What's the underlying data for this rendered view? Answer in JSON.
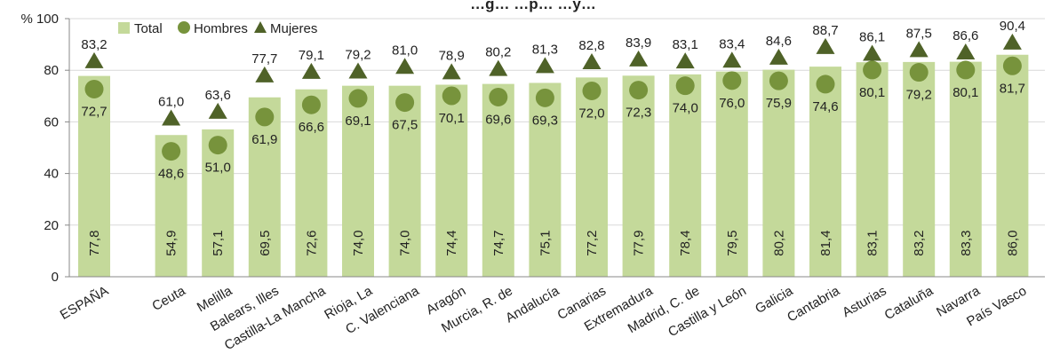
{
  "chart_data": {
    "type": "bar",
    "title": "…g…    …p…    …y…",
    "ylabel": "%",
    "ylim": [
      0,
      100
    ],
    "yticks": [
      0,
      20,
      40,
      60,
      80,
      100
    ],
    "y_top_tick_label": "% 100",
    "grid": true,
    "legend_position": "top-left",
    "decimal_separator": ",",
    "categories": [
      "ESPAÑA",
      "Ceuta",
      "Melilla",
      "Balears, Illes",
      "Castilla-La Mancha",
      "Rioja, La",
      "C. Valenciana",
      "Aragón",
      "Murcia, R. de",
      "Andalucía",
      "Canarias",
      "Extremadura",
      "Madrid, C. de",
      "Castilla y León",
      "Galicia",
      "Cantabria",
      "Asturias",
      "Cataluña",
      "Navarra",
      "País Vasco"
    ],
    "series": [
      {
        "name": "Total",
        "kind": "bar",
        "color": "#c4d99a",
        "values": [
          77.8,
          54.9,
          57.1,
          69.5,
          72.6,
          74.0,
          74.0,
          74.4,
          74.7,
          75.1,
          77.2,
          77.9,
          78.4,
          79.5,
          80.2,
          81.4,
          83.1,
          83.2,
          83.3,
          86.0
        ]
      },
      {
        "name": "Hombres",
        "kind": "circle",
        "color": "#77933c",
        "values": [
          72.7,
          48.6,
          51.0,
          61.9,
          66.6,
          69.1,
          67.5,
          70.1,
          69.6,
          69.3,
          72.0,
          72.3,
          74.0,
          76.0,
          75.9,
          74.6,
          80.1,
          79.2,
          80.1,
          81.7
        ]
      },
      {
        "name": "Mujeres",
        "kind": "triangle",
        "color": "#4f6228",
        "values": [
          83.2,
          61.0,
          63.6,
          77.7,
          79.1,
          79.2,
          81.0,
          78.9,
          80.2,
          81.3,
          82.8,
          83.9,
          83.1,
          83.4,
          84.6,
          88.7,
          86.1,
          87.5,
          86.6,
          90.4
        ]
      }
    ]
  }
}
